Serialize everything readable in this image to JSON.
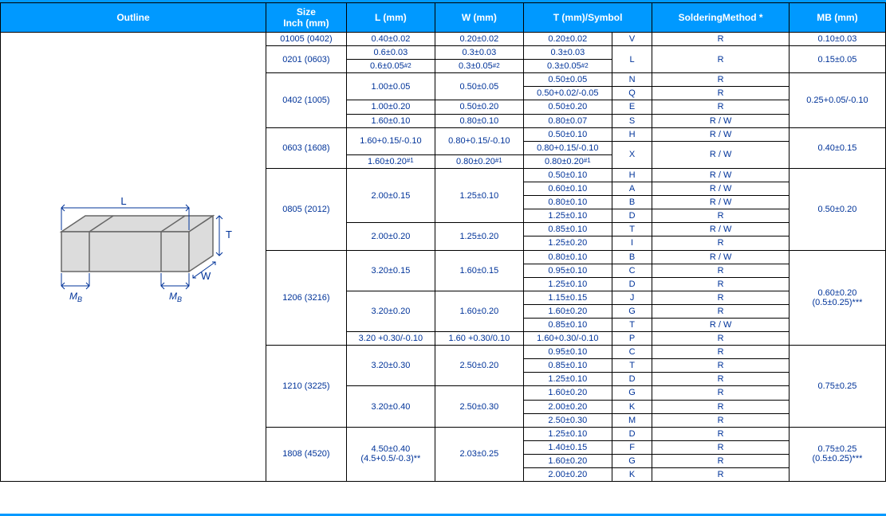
{
  "colors": {
    "header_bg": "#0099ff",
    "header_fg": "#ffffff",
    "cell_fg": "#003399",
    "border": "#000000",
    "outline_bg": "#a8c3ec"
  },
  "headers": {
    "outline": "Outline",
    "size": "Size\nInch (mm)",
    "l": "L (mm)",
    "w": "W (mm)",
    "t": "T (mm)/Symbol",
    "soldering": "SolderingMethod *",
    "mb": "MB (mm)"
  },
  "diagram": {
    "labels": {
      "L": "L",
      "W": "W",
      "T": "T",
      "MB": "M",
      "MBsub": "B"
    },
    "fill": "#dcdcdc",
    "stroke": "#666666",
    "text_color": "#003399"
  },
  "rows": [
    {
      "size": "01005 (0402)",
      "L": "0.40±0.02",
      "W": "0.20±0.02",
      "T": "0.20±0.02",
      "sym": "V",
      "sld": "R",
      "MB": "0.10±0.03"
    },
    {
      "size": "0201 (0603)",
      "size_span": 2,
      "L": "0.6±0.03",
      "W": "0.3±0.03",
      "T": "0.3±0.03",
      "sym": "L",
      "sym_span": 2,
      "sld": "R",
      "sld_span": 2,
      "MB": "0.15±0.05",
      "MB_span": 2
    },
    {
      "L": "0.6±0.05",
      "L_sup": "#2",
      "W": "0.3±0.05",
      "W_sup": "#2",
      "T": "0.3±0.05",
      "T_sup": "#2"
    },
    {
      "size": "0402 (1005)",
      "size_span": 4,
      "L": "1.00±0.05",
      "L_span": 2,
      "W": "0.50±0.05",
      "W_span": 2,
      "T": "0.50±0.05",
      "sym": "N",
      "sld": "R",
      "MB": "0.25+0.05/-0.10",
      "MB_span": 4
    },
    {
      "T": "0.50+0.02/-0.05",
      "sym": "Q",
      "sld": "R"
    },
    {
      "L": "1.00±0.20",
      "W": "0.50±0.20",
      "T": "0.50±0.20",
      "sym": "E",
      "sld": "R"
    },
    {
      "L": "1.60±0.10",
      "W": "0.80±0.10",
      "T": "0.80±0.07",
      "sym": "S",
      "sld": "R / W"
    },
    {
      "size": "0603 (1608)",
      "size_span": 3,
      "L": "1.60+0.15/-0.10",
      "L_span": 2,
      "W": "0.80+0.15/-0.10",
      "W_span": 2,
      "T": "0.50±0.10",
      "sym": "H",
      "sld": "R / W",
      "MB": "0.40±0.15",
      "MB_span": 3
    },
    {
      "T": "0.80+0.15/-0.10",
      "sym": "X",
      "sym_span": 2,
      "sld": "R / W",
      "sld_span": 2
    },
    {
      "L": "1.60±0.20",
      "L_sup": "#1",
      "W": "0.80±0.20",
      "W_sup": "#1",
      "T": "0.80±0.20",
      "T_sup": "#1"
    },
    {
      "size": "0805 (2012)",
      "size_span": 6,
      "L": "2.00±0.15",
      "L_span": 4,
      "W": "1.25±0.10",
      "W_span": 4,
      "T": "0.50±0.10",
      "sym": "H",
      "sld": "R / W",
      "MB": "0.50±0.20",
      "MB_span": 6
    },
    {
      "T": "0.60±0.10",
      "sym": "A",
      "sld": "R / W"
    },
    {
      "T": "0.80±0.10",
      "sym": "B",
      "sld": "R / W"
    },
    {
      "T": "1.25±0.10",
      "sym": "D",
      "sld": "R"
    },
    {
      "L": "2.00±0.20",
      "L_span": 2,
      "W": "1.25±0.20",
      "W_span": 2,
      "T": "0.85±0.10",
      "sym": "T",
      "sld": "R / W"
    },
    {
      "T": "1.25±0.20",
      "sym": "I",
      "sld": "R"
    },
    {
      "size": "1206 (3216)",
      "size_span": 7,
      "L": "3.20±0.15",
      "L_span": 3,
      "W": "1.60±0.15",
      "W_span": 3,
      "T": "0.80±0.10",
      "sym": "B",
      "sld": "R / W",
      "MB": "0.60±0.20\n(0.5±0.25)***",
      "MB_span": 7
    },
    {
      "T": "0.95±0.10",
      "sym": "C",
      "sld": "R"
    },
    {
      "T": "1.25±0.10",
      "sym": "D",
      "sld": "R"
    },
    {
      "L": "3.20±0.20",
      "L_span": 3,
      "W": "1.60±0.20",
      "W_span": 3,
      "T": "1.15±0.15",
      "sym": "J",
      "sld": "R"
    },
    {
      "T": "1.60±0.20",
      "sym": "G",
      "sld": "R"
    },
    {
      "T": "0.85±0.10",
      "sym": "T",
      "sld": "R / W"
    },
    {
      "L": "3.20 +0.30/-0.10",
      "W": "1.60 +0.30/0.10",
      "T": "1.60+0.30/-0.10",
      "sym": "P",
      "sld": "R"
    },
    {
      "size": "1210 (3225)",
      "size_span": 6,
      "L": "3.20±0.30",
      "L_span": 3,
      "W": "2.50±0.20",
      "W_span": 3,
      "T": "0.95±0.10",
      "sym": "C",
      "sld": "R",
      "MB": "0.75±0.25",
      "MB_span": 6
    },
    {
      "T": "0.85±0.10",
      "sym": "T",
      "sld": "R"
    },
    {
      "T": "1.25±0.10",
      "sym": "D",
      "sld": "R"
    },
    {
      "L": "3.20±0.40",
      "L_span": 3,
      "W": "2.50±0.30",
      "W_span": 3,
      "T": "1.60±0.20",
      "sym": "G",
      "sld": "R"
    },
    {
      "T": "2.00±0.20",
      "sym": "K",
      "sld": "R"
    },
    {
      "T": "2.50±0.30",
      "sym": "M",
      "sld": "R"
    },
    {
      "size": "1808 (4520)",
      "size_span": 4,
      "L": "4.50±0.40\n(4.5+0.5/-0.3)**",
      "L_span": 4,
      "W": "2.03±0.25",
      "W_span": 4,
      "T": "1.25±0.10",
      "sym": "D",
      "sld": "R",
      "MB": "0.75±0.25\n(0.5±0.25)***",
      "MB_span": 4
    },
    {
      "T": "1.40±0.15",
      "sym": "F",
      "sld": "R"
    },
    {
      "T": "1.60±0.20",
      "sym": "G",
      "sld": "R"
    },
    {
      "T": "2.00±0.20",
      "sym": "K",
      "sld": "R"
    }
  ]
}
